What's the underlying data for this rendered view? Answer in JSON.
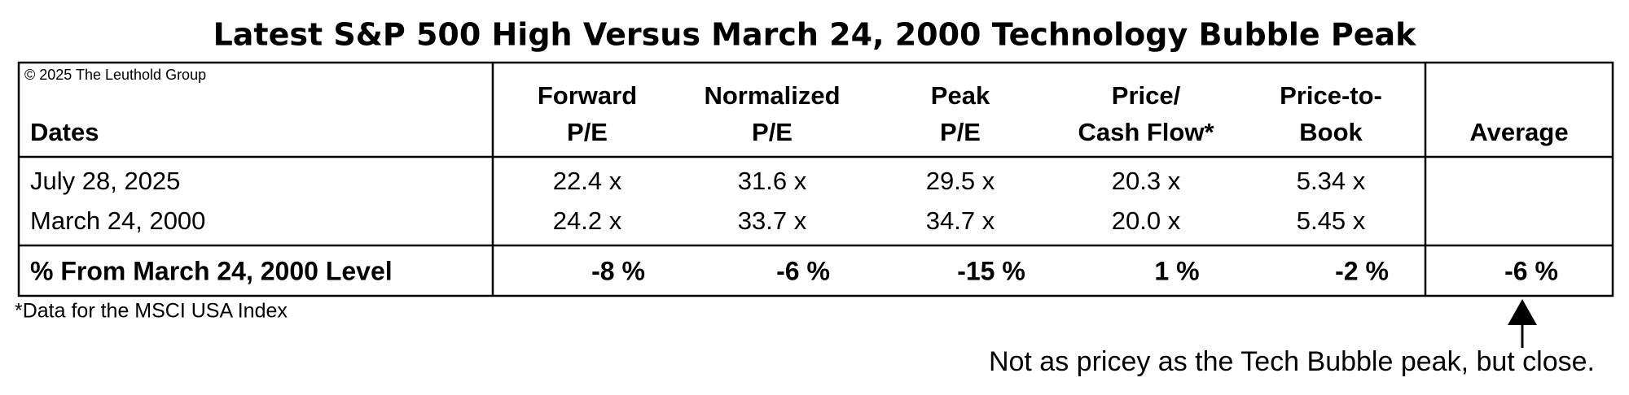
{
  "title": "Latest S&P 500 High Versus March 24, 2000 Technology Bubble Peak",
  "copyright": "© 2025 The Leuthold Group",
  "table": {
    "header": [
      [
        "Dates"
      ],
      [
        "Forward",
        "P/E"
      ],
      [
        "Normalized",
        "P/E"
      ],
      [
        "Peak",
        "P/E"
      ],
      [
        "Price/",
        "Cash Flow*"
      ],
      [
        "Price-to-",
        "Book"
      ],
      [
        "Average"
      ]
    ],
    "rows": [
      [
        "July 28, 2025",
        "22.4 x",
        "31.6 x",
        "29.5 x",
        "20.3 x",
        "5.34 x"
      ],
      [
        "March 24, 2000",
        "24.2 x",
        "33.7 x",
        "34.7 x",
        "20.0 x",
        "5.45 x"
      ]
    ],
    "summary": [
      "% From March 24, 2000 Level",
      "-8 %",
      "-6 %",
      "-15 %",
      "1 %",
      "-2 %",
      "-6 %"
    ]
  },
  "footnote": "*Data for the MSCI USA Index",
  "annotation": "Not as pricey as the Tech Bubble peak, but close."
}
